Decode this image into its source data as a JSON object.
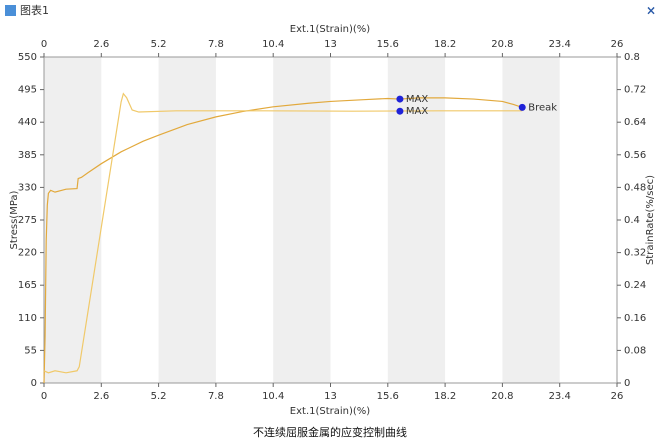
{
  "window_title": "图表1",
  "chart_data": {
    "type": "line",
    "title": "不连续屈服金属的应变控制曲线",
    "xlabel": "Ext.1(Strain)(%)",
    "ylabel": "Stress(MPa)",
    "y2label": "StrainRate(%/sec)",
    "xlim": [
      0,
      26
    ],
    "xticks": [
      0,
      2.6,
      5.2,
      7.8,
      10.4,
      13,
      15.6,
      18.2,
      20.8,
      23.4,
      26
    ],
    "ylim": [
      0,
      550
    ],
    "yticks": [
      0,
      55,
      110,
      165,
      220,
      275,
      330,
      385,
      440,
      495,
      550
    ],
    "y2lim": [
      0,
      0.8
    ],
    "y2ticks": [
      0,
      0.08,
      0.16,
      0.24,
      0.32,
      0.4,
      0.48,
      0.56,
      0.64,
      0.72,
      0.8
    ],
    "series": [
      {
        "color": "#e2a93c",
        "axis": "y",
        "x": [
          0,
          0.05,
          0.1,
          0.15,
          0.2,
          0.3,
          0.5,
          1.0,
          1.5,
          1.55,
          1.7,
          2.0,
          2.6,
          3.5,
          4.5,
          5.2,
          6.5,
          7.8,
          9,
          10.4,
          12,
          13,
          14.5,
          15.6,
          16.15,
          17,
          18.2,
          19.5,
          20.8,
          21.3,
          21.7
        ],
        "values": [
          0,
          80,
          240,
          300,
          320,
          325,
          322,
          327,
          328,
          345,
          347,
          355,
          370,
          390,
          408,
          418,
          436,
          449,
          458,
          466,
          472,
          475,
          478,
          480,
          479,
          481,
          481,
          479,
          475,
          470,
          465
        ]
      },
      {
        "color": "#f0c96a",
        "axis": "y2",
        "x": [
          0,
          0.2,
          0.5,
          1.0,
          1.5,
          1.6,
          3.5,
          3.6,
          3.75,
          4.0,
          4.3,
          6,
          10,
          14,
          18,
          21.7
        ],
        "values": [
          0.03,
          0.025,
          0.03,
          0.025,
          0.03,
          0.04,
          0.69,
          0.71,
          0.7,
          0.67,
          0.665,
          0.668,
          0.668,
          0.667,
          0.668,
          0.668
        ]
      }
    ],
    "annotations": [
      {
        "x": 16.15,
        "y": 479,
        "axis": "y",
        "label": "MAX"
      },
      {
        "x": 16.15,
        "y": 0.667,
        "axis": "y2",
        "label": "MAX"
      },
      {
        "x": 21.7,
        "y": 465,
        "axis": "y",
        "label": "Break"
      }
    ],
    "marker_color": "#1f22d8"
  }
}
